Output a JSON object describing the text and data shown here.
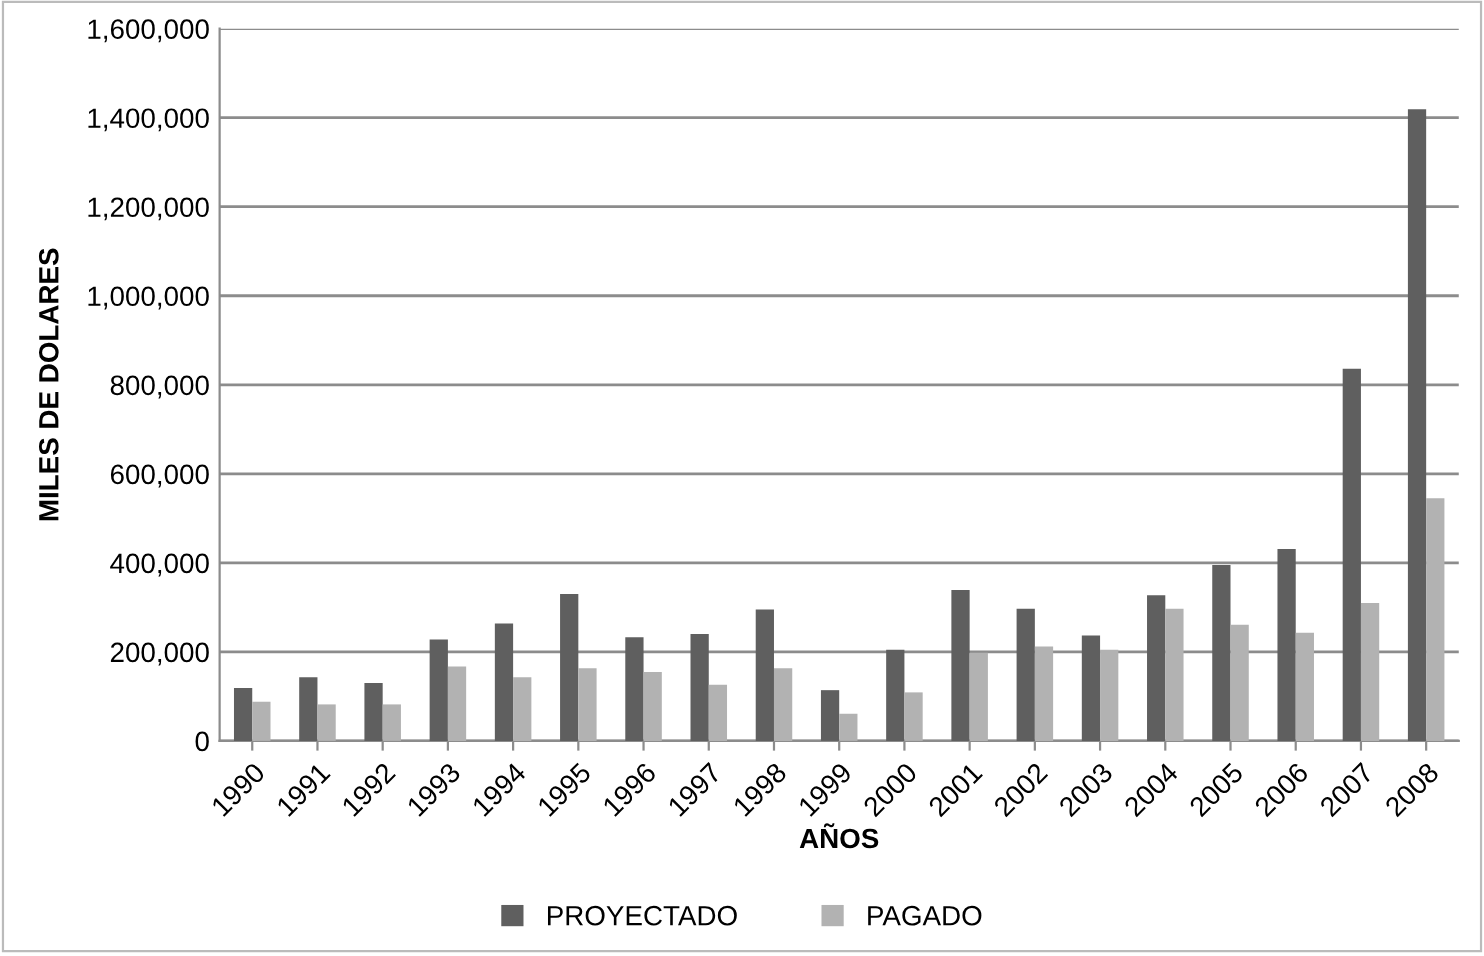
{
  "chart_data": {
    "type": "bar",
    "xlabel": "AÑOS",
    "ylabel": "MILES DE DOLARES",
    "categories": [
      "1990",
      "1991",
      "1992",
      "1993",
      "1994",
      "1995",
      "1996",
      "1997",
      "1998",
      "1999",
      "2000",
      "2001",
      "2002",
      "2003",
      "2004",
      "2005",
      "2006",
      "2007",
      "2008"
    ],
    "series": [
      {
        "name": "PROYECTADO",
        "color": "#5f5f5f",
        "values": [
          119000,
          143000,
          130000,
          228000,
          264000,
          330000,
          233000,
          240000,
          295000,
          114000,
          205000,
          339000,
          297000,
          237000,
          327000,
          395000,
          431000,
          836000,
          1419000
        ]
      },
      {
        "name": "PAGADO",
        "color": "#b2b2b2",
        "values": [
          88000,
          82000,
          82000,
          167000,
          143000,
          163000,
          155000,
          126000,
          163000,
          61000,
          109000,
          198000,
          212000,
          205000,
          297000,
          261000,
          243000,
          310000,
          545000
        ]
      }
    ],
    "ylim": [
      0,
      1600000
    ],
    "yticks": [
      {
        "value": 0,
        "label": "0"
      },
      {
        "value": 200000,
        "label": "200,000"
      },
      {
        "value": 400000,
        "label": "400,000"
      },
      {
        "value": 600000,
        "label": "600,000"
      },
      {
        "value": 800000,
        "label": "800,000"
      },
      {
        "value": 1000000,
        "label": "1,000,000"
      },
      {
        "value": 1200000,
        "label": "1,200,000"
      },
      {
        "value": 1400000,
        "label": "1,400,000"
      },
      {
        "value": 1600000,
        "label": "1,600,000"
      }
    ],
    "grid": "y",
    "legend": "bottom"
  }
}
